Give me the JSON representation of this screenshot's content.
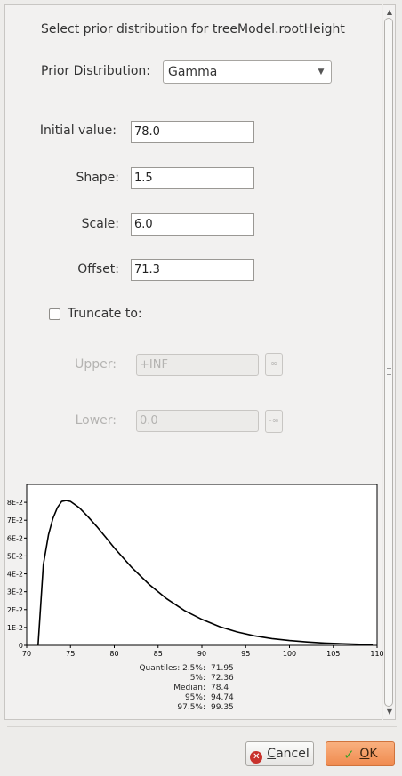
{
  "dialog": {
    "title": "Select prior distribution for treeModel.rootHeight",
    "prior_label": "Prior Distribution:",
    "prior_value": "Gamma"
  },
  "params": {
    "initial_label": "Initial value:",
    "initial_value": "78.0",
    "shape_label": "Shape:",
    "shape_value": "1.5",
    "scale_label": "Scale:",
    "scale_value": "6.0",
    "offset_label": "Offset:",
    "offset_value": "71.3"
  },
  "truncate": {
    "label": "Truncate to:",
    "checked": false,
    "upper_label": "Upper:",
    "upper_value": "+INF",
    "upper_btn": "∞",
    "lower_label": "Lower:",
    "lower_value": "0.0",
    "lower_btn": "-∞"
  },
  "chart_data": {
    "type": "line",
    "xlim": [
      70,
      110
    ],
    "ylim": [
      0,
      0.09
    ],
    "x_ticks": [
      "70",
      "75",
      "80",
      "85",
      "90",
      "95",
      "100",
      "105",
      "110"
    ],
    "y_ticks": [
      "0",
      "1E-2",
      "2E-2",
      "3E-2",
      "4E-2",
      "5E-2",
      "6E-2",
      "7E-2",
      "8E-2"
    ],
    "series": [
      {
        "x": [
          71.3,
          71.9,
          72.5,
          73.0,
          73.5,
          74.0,
          74.5,
          75.0,
          76.0,
          77.0,
          78.0,
          79.0,
          80.0,
          82.0,
          84.0,
          86.0,
          88.0,
          90.0,
          92.0,
          94.0,
          96.0,
          98.0,
          100.0,
          102.0,
          104.0,
          106.0,
          108.0,
          109.5
        ],
        "y": [
          0.0,
          0.045,
          0.062,
          0.071,
          0.077,
          0.0805,
          0.081,
          0.0805,
          0.077,
          0.072,
          0.0665,
          0.0605,
          0.0545,
          0.0435,
          0.034,
          0.026,
          0.0195,
          0.0145,
          0.0105,
          0.0075,
          0.0053,
          0.0038,
          0.0027,
          0.0019,
          0.0013,
          0.0009,
          0.0006,
          0.0004
        ]
      }
    ]
  },
  "quantiles": [
    {
      "label": "Quantiles: 2.5%:",
      "value": "71.95"
    },
    {
      "label": "5%:",
      "value": "72.36"
    },
    {
      "label": "Median:",
      "value": "78.4"
    },
    {
      "label": "95%:",
      "value": "94.74"
    },
    {
      "label": "97.5%:",
      "value": "99.35"
    }
  ],
  "buttons": {
    "cancel_pre": "",
    "cancel_mn": "C",
    "cancel_post": "ancel",
    "ok_pre": "",
    "ok_mn": "O",
    "ok_post": "K"
  }
}
